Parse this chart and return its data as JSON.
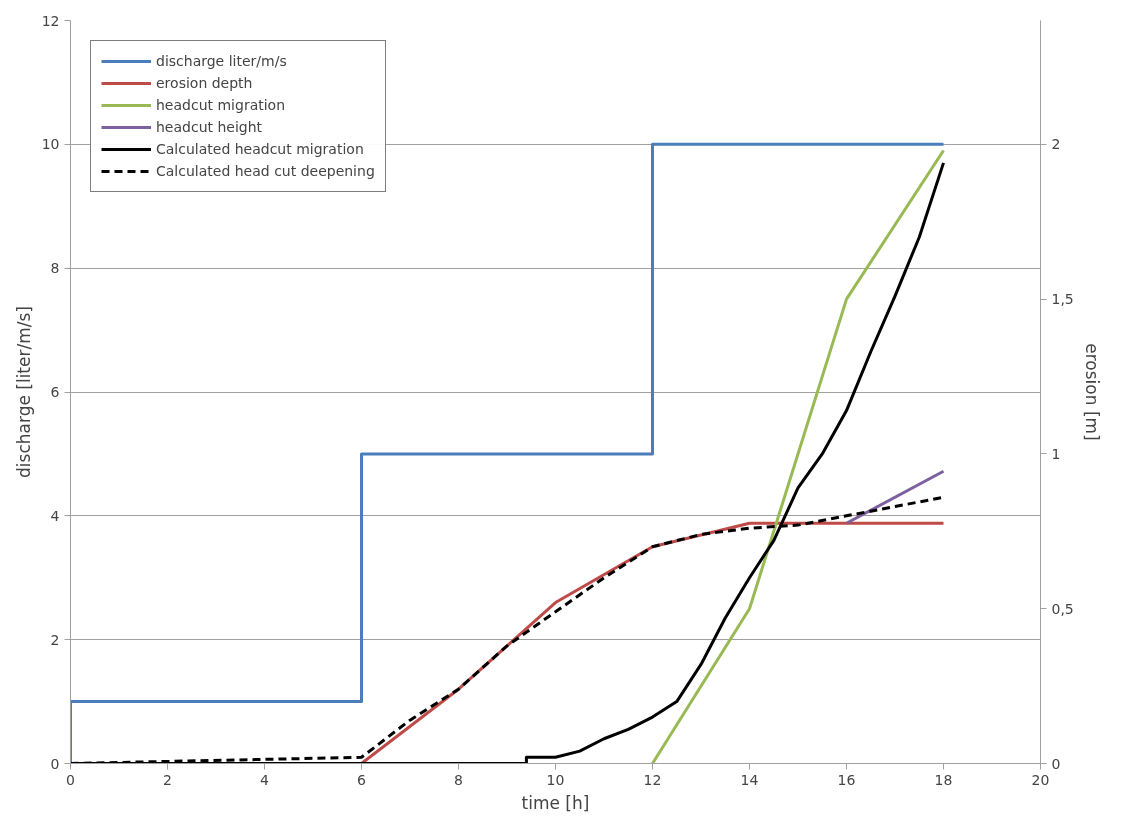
{
  "chart_data": {
    "type": "line",
    "xlabel": "time [h]",
    "ylabel": "discharge [liter/m/s]",
    "y2label": "erosion [m]",
    "xlim": [
      0,
      20
    ],
    "xticks": [
      0,
      2,
      4,
      6,
      8,
      10,
      12,
      14,
      16,
      18,
      20
    ],
    "ylim": [
      0,
      12
    ],
    "yticks": [
      0,
      2,
      4,
      6,
      8,
      10,
      12
    ],
    "y2lim": [
      0,
      2.4
    ],
    "y2ticks": [
      0,
      {
        "value": 0.5,
        "label": "0,5"
      },
      1,
      {
        "value": 1.5,
        "label": "1,5"
      },
      2
    ],
    "grid": "y",
    "legend": "top left",
    "marker": "none",
    "series": [
      {
        "name": "discharge liter/m/s",
        "color": "#4a7ebb",
        "x": [
          0,
          0,
          6,
          6,
          12,
          12,
          18
        ],
        "values": [
          0,
          1,
          1,
          5,
          5,
          10,
          10
        ]
      },
      {
        "name": "erosion depth",
        "color": "#be4b48",
        "axis": "y2",
        "x": [
          6,
          8,
          10,
          12,
          14,
          18
        ],
        "values": [
          0,
          0.24,
          0.52,
          0.7,
          0.776,
          0.776
        ]
      },
      {
        "name": "headcut migration",
        "color": "#98b954",
        "axis": "y2",
        "x": [
          12,
          14,
          16,
          18
        ],
        "values": [
          0,
          0.5,
          1.5,
          1.98
        ]
      },
      {
        "name": "headcut height",
        "color": "#7d60a0",
        "axis": "y2",
        "x": [
          16,
          18
        ],
        "values": [
          0.776,
          0.944
        ]
      },
      {
        "name": "Calculated headcut migration",
        "color": "#000000",
        "axis": "y2",
        "x": [
          0,
          9.4,
          9.4,
          10,
          10.5,
          11,
          11.5,
          12,
          12.5,
          13,
          13.5,
          14,
          14.5,
          15,
          15.5,
          16,
          16.5,
          17,
          17.5,
          18
        ],
        "values": [
          0,
          0,
          0.02,
          0.02,
          0.04,
          0.08,
          0.11,
          0.15,
          0.2,
          0.32,
          0.47,
          0.6,
          0.72,
          0.89,
          1.0,
          1.14,
          1.33,
          1.51,
          1.7,
          1.94
        ]
      },
      {
        "name": "Calculated head cut deepening",
        "color": "#000000",
        "axis": "y2",
        "line_style": "dashed",
        "x": [
          0,
          6,
          7,
          8,
          9,
          10,
          11,
          12,
          13,
          14,
          15,
          16,
          17,
          18
        ],
        "values": [
          0,
          0.02,
          0.14,
          0.24,
          0.38,
          0.49,
          0.6,
          0.7,
          0.74,
          0.76,
          0.77,
          0.8,
          0.83,
          0.86
        ]
      }
    ]
  }
}
